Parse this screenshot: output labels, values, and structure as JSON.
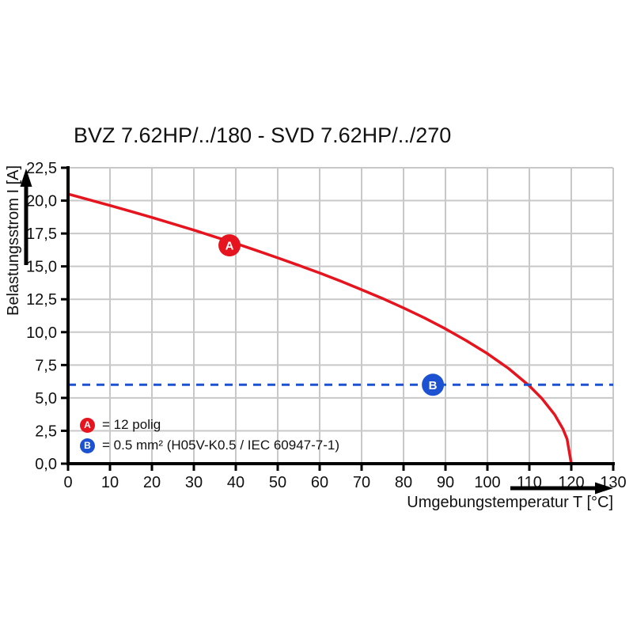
{
  "chart_data": {
    "type": "line",
    "title": "BVZ 7.62HP/../180 - SVD 7.62HP/../270",
    "xlabel": "Umgebungstemperatur T [°C]",
    "ylabel": "Belastungsstrom I [A]",
    "xlim": [
      0,
      130
    ],
    "ylim": [
      0,
      22.5
    ],
    "grid": true,
    "x_ticks": [
      0,
      10,
      20,
      30,
      40,
      50,
      60,
      70,
      80,
      90,
      100,
      110,
      120,
      130
    ],
    "x_tick_labels": [
      "0",
      "10",
      "20",
      "30",
      "40",
      "50",
      "60",
      "70",
      "80",
      "90",
      "100",
      "110",
      "120",
      "130"
    ],
    "y_ticks": [
      0,
      2.5,
      5,
      7.5,
      10,
      12.5,
      15,
      17.5,
      20,
      22.5
    ],
    "y_tick_labels": [
      "0,0",
      "2,5",
      "5,0",
      "7,5",
      "10,0",
      "12,5",
      "15,0",
      "17,5",
      "20,0",
      "22,5"
    ],
    "series": [
      {
        "name": "A = 12 polig",
        "kind": "curve",
        "color": "#e6141e",
        "x": [
          0,
          5,
          10,
          15,
          20,
          25,
          30,
          35,
          40,
          45,
          50,
          55,
          60,
          65,
          70,
          75,
          80,
          85,
          90,
          95,
          100,
          105,
          110,
          113,
          116,
          118,
          119,
          120
        ],
        "y": [
          20.5,
          20.07,
          19.63,
          19.18,
          18.72,
          18.24,
          17.76,
          17.25,
          16.74,
          16.2,
          15.65,
          15.08,
          14.5,
          13.88,
          13.23,
          12.56,
          11.84,
          11.08,
          10.25,
          9.35,
          8.37,
          7.25,
          5.92,
          4.95,
          3.74,
          2.65,
          1.87,
          0
        ]
      },
      {
        "name": "B = 0.5 mm² (H05V-K0.5 / IEC 60947-7-1)",
        "kind": "hline",
        "color": "#1c52d2",
        "style": "dashed",
        "y": 6.0
      }
    ],
    "markers": [
      {
        "label": "A",
        "x": 38.5,
        "y": 16.6,
        "color": "#e6141e"
      },
      {
        "label": "B",
        "x": 87,
        "y": 6.0,
        "color": "#1c52d2"
      }
    ],
    "legend": [
      {
        "symbol": "A",
        "color": "#e6141e",
        "text": "= 12 polig"
      },
      {
        "symbol": "B",
        "color": "#1c52d2",
        "text": "= 0.5 mm² (H05V-K0.5 / IEC 60947-7-1)"
      }
    ],
    "colors": {
      "curve_red": "#e6141e",
      "line_blue": "#1c52d2",
      "grid": "#c8c8c8",
      "axis": "#000000",
      "background": "#ffffff"
    }
  }
}
